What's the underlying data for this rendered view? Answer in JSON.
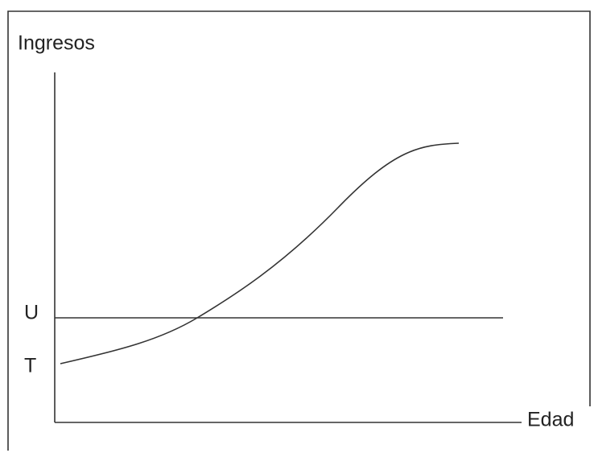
{
  "axes": {
    "y_label": "Ingresos",
    "x_label": "Edad"
  },
  "levels": [
    {
      "label": "U"
    },
    {
      "label": "T"
    }
  ]
}
